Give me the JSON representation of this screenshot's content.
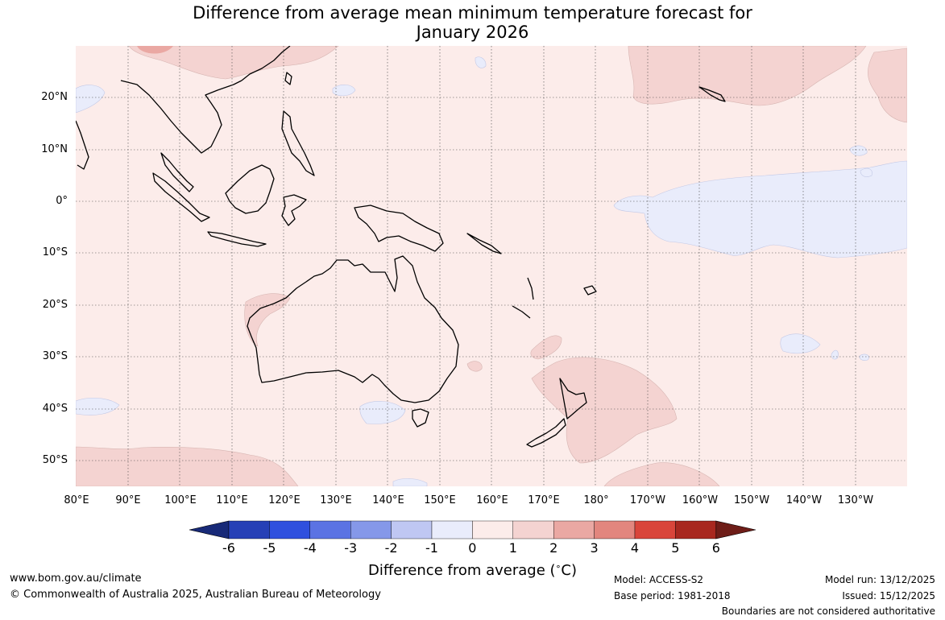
{
  "title_line1": "Difference from average mean minimum temperature forecast for",
  "title_line2": "January 2026",
  "lat_labels": [
    "20°N",
    "10°N",
    "0°",
    "10°S",
    "20°S",
    "30°S",
    "40°S",
    "50°S"
  ],
  "lon_labels": [
    "80°E",
    "90°E",
    "100°E",
    "110°E",
    "120°E",
    "130°E",
    "140°E",
    "150°E",
    "160°E",
    "170°E",
    "180°",
    "170°W",
    "160°W",
    "150°W",
    "140°W",
    "130°W"
  ],
  "colorbar": {
    "ticks": [
      "-6",
      "-5",
      "-4",
      "-3",
      "-2",
      "-1",
      "0",
      "1",
      "2",
      "3",
      "4",
      "5",
      "6"
    ],
    "label_text": "Difference from average (",
    "label_unit_sup": "∘",
    "label_unit": "C)",
    "colors": [
      "#182a78",
      "#2640b6",
      "#2f50de",
      "#5b73e3",
      "#8598e9",
      "#bfc7f3",
      "#e9ecfb",
      "#fcecea",
      "#f4d3d1",
      "#eaa8a3",
      "#e2867e",
      "#d9453a",
      "#a8281f",
      "#6e1d18"
    ]
  },
  "legend_classes": {
    "near_average": "#fcecea",
    "above_1_2": "#f4d3d1",
    "above_2_3": "#eaa8a3",
    "below_0_1": "#e9ecfb",
    "land_outline": "#000000",
    "border": "#888888"
  },
  "footer": {
    "url": "www.bom.gov.au/climate",
    "copyright": "© Commonwealth of Australia 2025, Australian Bureau of Meteorology",
    "model": "Model: ACCESS-S2",
    "base_period": "Base period: 1981-2018",
    "model_run": "Model run: 13/12/2025",
    "issued": "Issued: 15/12/2025",
    "disclaimer": "Boundaries are not considered authoritative"
  }
}
